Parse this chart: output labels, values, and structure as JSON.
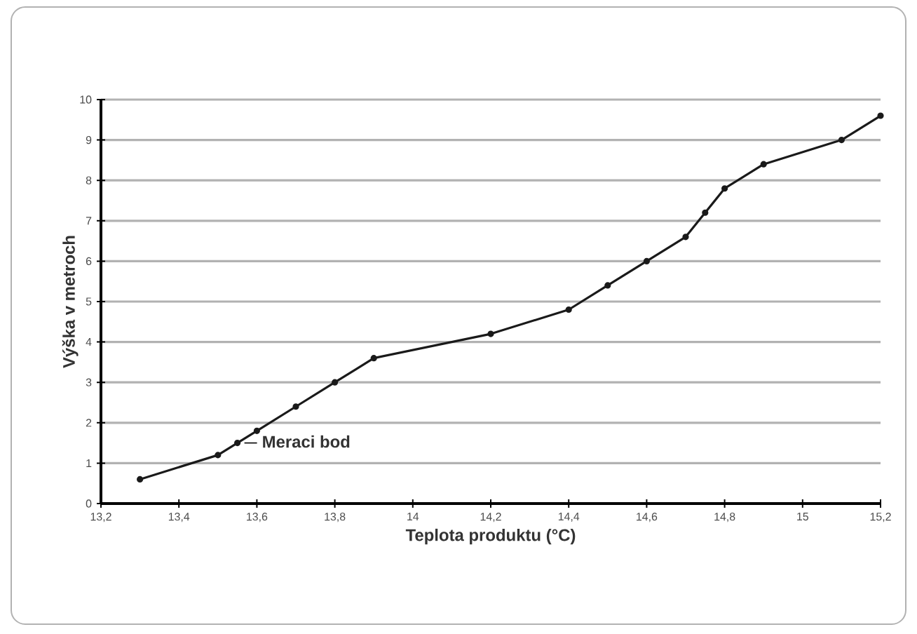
{
  "chart_data": {
    "type": "line",
    "xlabel": "Teplota produktu (°C)",
    "ylabel": "Výška v metroch",
    "x": [
      13.3,
      13.5,
      13.55,
      13.6,
      13.7,
      13.8,
      13.9,
      14.2,
      14.4,
      14.5,
      14.6,
      14.7,
      14.75,
      14.8,
      14.9,
      15.1,
      15.2
    ],
    "series": [
      {
        "color": "#1a1a1a",
        "values": [
          0.6,
          1.2,
          1.5,
          1.8,
          2.4,
          3.0,
          3.6,
          4.2,
          4.8,
          5.4,
          6.0,
          6.6,
          7.2,
          7.8,
          8.4,
          9.0,
          9.6
        ]
      }
    ],
    "xlim": [
      13.2,
      15.2
    ],
    "xticks": [
      {
        "value": 13.2,
        "label": "13,2"
      },
      {
        "value": 13.4,
        "label": "13,4"
      },
      {
        "value": 13.6,
        "label": "13,6"
      },
      {
        "value": 13.8,
        "label": "13,8"
      },
      14,
      {
        "value": 14.2,
        "label": "14,2"
      },
      {
        "value": 14.4,
        "label": "14,4"
      },
      {
        "value": 14.6,
        "label": "14,6"
      },
      {
        "value": 14.8,
        "label": "14,8"
      },
      15,
      {
        "value": 15.2,
        "label": "15,2"
      }
    ],
    "ylim": [
      0,
      10
    ],
    "yticks": [
      0,
      1,
      2,
      3,
      4,
      5,
      6,
      7,
      8,
      9,
      10
    ],
    "grid": "y",
    "marker": "circle",
    "line_style": "solid",
    "annotations": [
      {
        "text": "Meraci bod",
        "x": 13.55,
        "y": 1.5
      }
    ]
  }
}
